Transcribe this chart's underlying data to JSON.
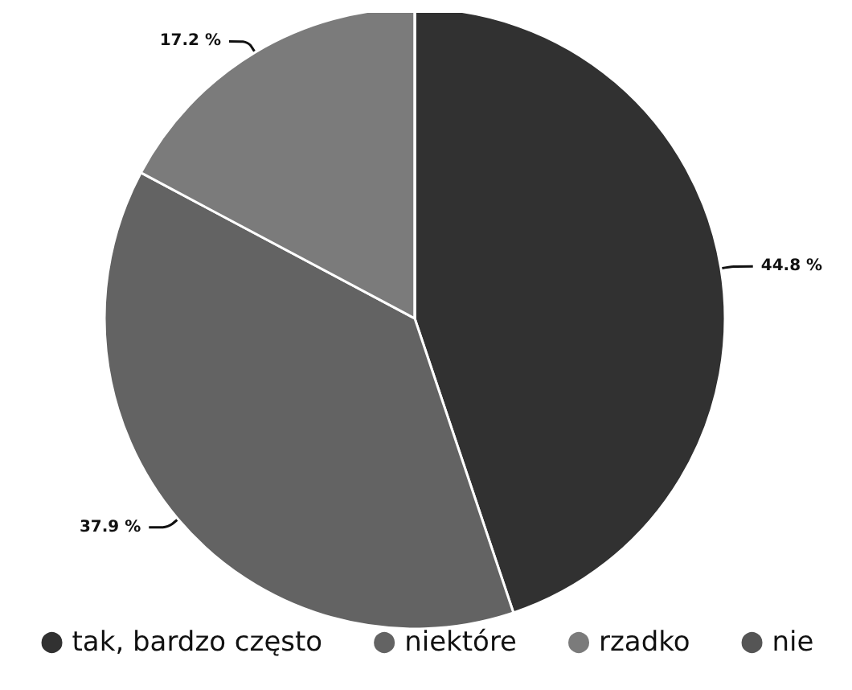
{
  "chart_data": {
    "type": "pie",
    "categories": [
      "tak, bardzo często",
      "niektóre",
      "rzadko",
      "nie"
    ],
    "values": [
      44.8,
      37.9,
      17.2,
      0
    ],
    "colors": [
      "#313131",
      "#636363",
      "#7b7b7b",
      "#555555"
    ],
    "value_labels": [
      "44.8 %",
      "37.9 %",
      "17.2 %",
      null
    ],
    "legend": "bottom"
  }
}
